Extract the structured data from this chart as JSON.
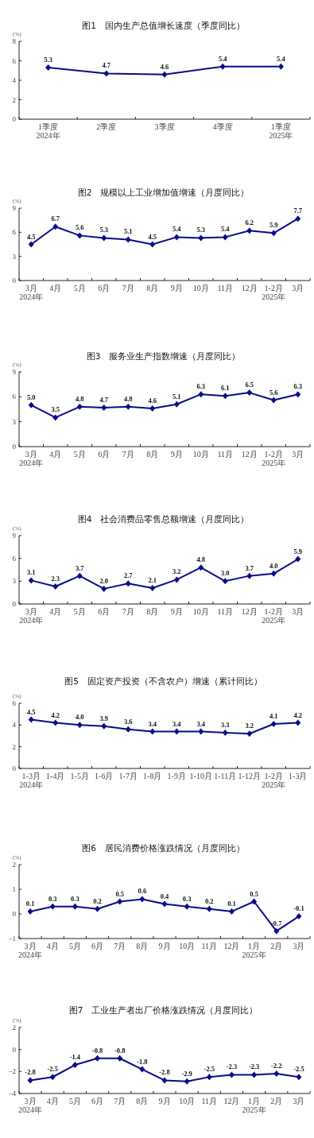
{
  "chart_data": [
    {
      "type": "line",
      "title": "图1　国内生产总值增长速度（季度同比）",
      "ylabel": "(%)",
      "categories": [
        "1季度 2024年",
        "2季度",
        "3季度",
        "4季度",
        "1季度 2025年"
      ],
      "values": [
        5.3,
        4.7,
        4.6,
        5.4,
        5.4
      ],
      "color": "#0a0a8c",
      "marker": "diamond",
      "data_labels": true,
      "ylim": [
        0,
        8
      ],
      "yticks": [
        0,
        2,
        4,
        6,
        8
      ]
    },
    {
      "type": "line",
      "title": "图2　规模以上工业增加值增速（月度同比）",
      "ylabel": "(%)",
      "categories": [
        "3月 2024年",
        "4月",
        "5月",
        "6月",
        "7月",
        "8月",
        "9月",
        "10月",
        "11月",
        "12月",
        "1-2月 2025年",
        "3月"
      ],
      "values": [
        4.5,
        6.7,
        5.6,
        5.3,
        5.1,
        4.5,
        5.4,
        5.3,
        5.4,
        6.2,
        5.9,
        7.7
      ],
      "color": "#0a0a8c",
      "marker": "diamond",
      "data_labels": true,
      "ylim": [
        0,
        9
      ],
      "yticks": [
        0,
        3,
        6,
        9
      ]
    },
    {
      "type": "line",
      "title": "图3　服务业生产指数增速（月度同比）",
      "ylabel": "(%)",
      "categories": [
        "3月 2024年",
        "4月",
        "5月",
        "6月",
        "7月",
        "8月",
        "9月",
        "10月",
        "11月",
        "12月",
        "1-2月 2025年",
        "3月"
      ],
      "values": [
        5.0,
        3.5,
        4.8,
        4.7,
        4.8,
        4.6,
        5.1,
        6.3,
        6.1,
        6.5,
        5.6,
        6.3
      ],
      "value_labels": [
        "5.0",
        "3.5",
        "4.8",
        "4.7",
        "4.8",
        "4.6",
        "5.1",
        "6.3",
        "6.1",
        "6.5",
        "5.6",
        "6.3"
      ],
      "color": "#0a0a8c",
      "marker": "diamond",
      "ylim": [
        0,
        9
      ],
      "yticks": [
        0,
        3,
        6,
        9
      ]
    },
    {
      "type": "line",
      "title": "图4　社会消费品零售总额增速（月度同比）",
      "ylabel": "(%)",
      "categories": [
        "3月 2024年",
        "4月",
        "5月",
        "6月",
        "7月",
        "8月",
        "9月",
        "10月",
        "11月",
        "12月",
        "1-2月 2025年",
        "3月"
      ],
      "values": [
        3.1,
        2.3,
        3.7,
        2.0,
        2.7,
        2.1,
        3.2,
        4.8,
        3.0,
        3.7,
        4.0,
        5.9
      ],
      "value_labels": [
        "3.1",
        "2.3",
        "3.7",
        "2.0",
        "2.7",
        "2.1",
        "3.2",
        "4.8",
        "3.0",
        "3.7",
        "4.0",
        "5.9"
      ],
      "color": "#0a0a8c",
      "marker": "diamond",
      "ylim": [
        0,
        9
      ],
      "yticks": [
        0,
        3,
        6,
        9
      ]
    },
    {
      "type": "line",
      "title": "图5　固定资产投资（不含农户）增速（累计同比）",
      "ylabel": "(%)",
      "categories": [
        "1-3月 2024年",
        "1-4月",
        "1-5月",
        "1-6月",
        "1-7月",
        "1-8月",
        "1-9月",
        "1-10月",
        "1-11月",
        "1-12月",
        "1-2月 2025年",
        "1-3月"
      ],
      "values": [
        4.5,
        4.2,
        4.0,
        3.9,
        3.6,
        3.4,
        3.4,
        3.4,
        3.3,
        3.2,
        4.1,
        4.2
      ],
      "value_labels": [
        "4.5",
        "4.2",
        "4.0",
        "3.9",
        "3.6",
        "3.4",
        "3.4",
        "3.4",
        "3.3",
        "3.2",
        "4.1",
        "4.2"
      ],
      "color": "#0a0a8c",
      "marker": "diamond",
      "ylim": [
        0,
        6
      ],
      "yticks": [
        0,
        2,
        4,
        6
      ]
    },
    {
      "type": "line",
      "title": "图6　居民消费价格涨跌情况（月度同比）",
      "ylabel": "(%)",
      "categories": [
        "3月 2024年",
        "4月",
        "5月",
        "6月",
        "7月",
        "8月",
        "9月",
        "10月",
        "11月",
        "12月",
        "1月 2025年",
        "2月",
        "3月"
      ],
      "values": [
        0.1,
        0.3,
        0.3,
        0.2,
        0.5,
        0.6,
        0.4,
        0.3,
        0.2,
        0.1,
        0.5,
        -0.7,
        -0.1
      ],
      "color": "#0a0a8c",
      "marker": "diamond",
      "data_labels": true,
      "ylim": [
        -1,
        2
      ],
      "yticks": [
        {
          "value": -1,
          "label": "−1"
        },
        0,
        1,
        2
      ]
    },
    {
      "type": "line",
      "title": "图7　工业生产者出厂价格涨跌情况（月度同比）",
      "ylabel": "(%)",
      "categories": [
        "3月 2024年",
        "4月",
        "5月",
        "6月",
        "7月",
        "8月",
        "9月",
        "10月",
        "11月",
        "12月",
        "1月 2025年",
        "2月",
        "3月"
      ],
      "values": [
        -2.8,
        -2.5,
        -1.4,
        -0.8,
        -0.8,
        -1.8,
        -2.8,
        -2.9,
        -2.5,
        -2.3,
        -2.3,
        -2.2,
        -2.5
      ],
      "color": "#0a0a8c",
      "marker": "diamond",
      "data_labels": true,
      "ylim": [
        -4,
        2
      ],
      "yticks": [
        {
          "value": -4,
          "label": "−4"
        },
        {
          "value": -2,
          "label": "−2"
        },
        0,
        2
      ]
    }
  ]
}
